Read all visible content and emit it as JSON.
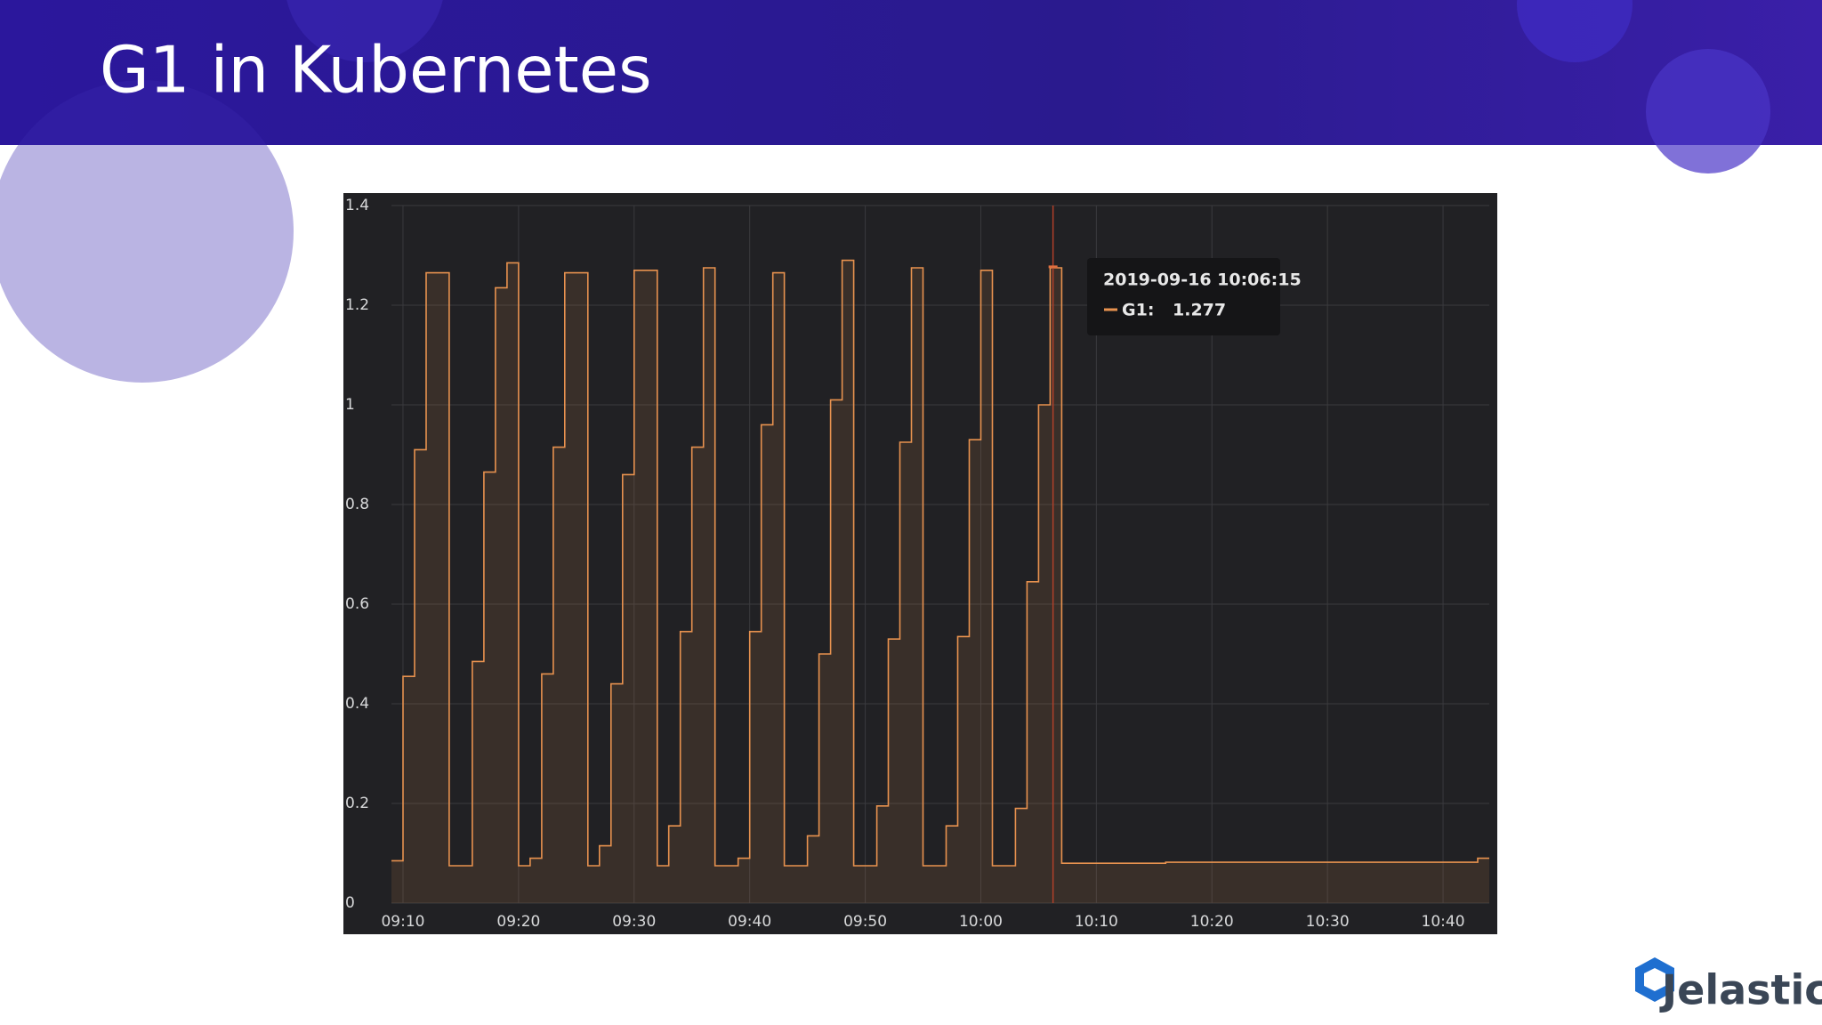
{
  "slide_title": "G1 in Kubernetes",
  "logo": "Jelastic",
  "chart_data": {
    "type": "line",
    "interpolation": "step-after",
    "x": [
      "09:09",
      "09:10",
      "09:11",
      "09:12",
      "09:14",
      "09:16",
      "09:17",
      "09:18",
      "09:19",
      "09:20",
      "09:21",
      "09:22",
      "09:23",
      "09:24",
      "09:26",
      "09:27",
      "09:28",
      "09:29",
      "09:30",
      "09:32",
      "09:33",
      "09:34",
      "09:35",
      "09:36",
      "09:37",
      "09:39",
      "09:40",
      "09:41",
      "09:42",
      "09:43",
      "09:45",
      "09:46",
      "09:47",
      "09:48",
      "09:49",
      "09:51",
      "09:52",
      "09:53",
      "09:54",
      "09:55",
      "09:57",
      "09:58",
      "09:59",
      "10:00",
      "10:01",
      "10:03",
      "10:04",
      "10:05",
      "10:06",
      "10:07",
      "10:16",
      "10:43",
      "10:44"
    ],
    "series": [
      {
        "name": "G1",
        "color": "#e8924f",
        "values": [
          0.085,
          0.455,
          0.91,
          1.265,
          0.075,
          0.485,
          0.865,
          1.235,
          1.285,
          0.075,
          0.09,
          0.46,
          0.915,
          1.265,
          0.075,
          0.115,
          0.44,
          0.86,
          1.27,
          0.075,
          0.155,
          0.545,
          0.915,
          1.275,
          0.075,
          0.09,
          0.545,
          0.96,
          1.265,
          0.075,
          0.135,
          0.5,
          1.01,
          1.29,
          0.075,
          0.195,
          0.53,
          0.925,
          1.275,
          0.075,
          0.155,
          0.535,
          0.93,
          1.27,
          0.075,
          0.19,
          0.645,
          1.0,
          1.275,
          0.08,
          0.082,
          0.09,
          0.09
        ]
      }
    ],
    "xlim": [
      "09:09",
      "10:44"
    ],
    "xticks": [
      "09:10",
      "09:20",
      "09:30",
      "09:40",
      "09:50",
      "10:00",
      "10:10",
      "10:20",
      "10:30",
      "10:40"
    ],
    "ylim": [
      0,
      1.4
    ],
    "yticks": [
      0,
      0.2,
      0.4,
      0.6,
      0.8,
      1.0,
      1.2,
      1.4
    ],
    "grid": true,
    "tooltip": {
      "title": "2019-09-16 10:06:15",
      "series": "G1:",
      "value": 1.277
    }
  }
}
